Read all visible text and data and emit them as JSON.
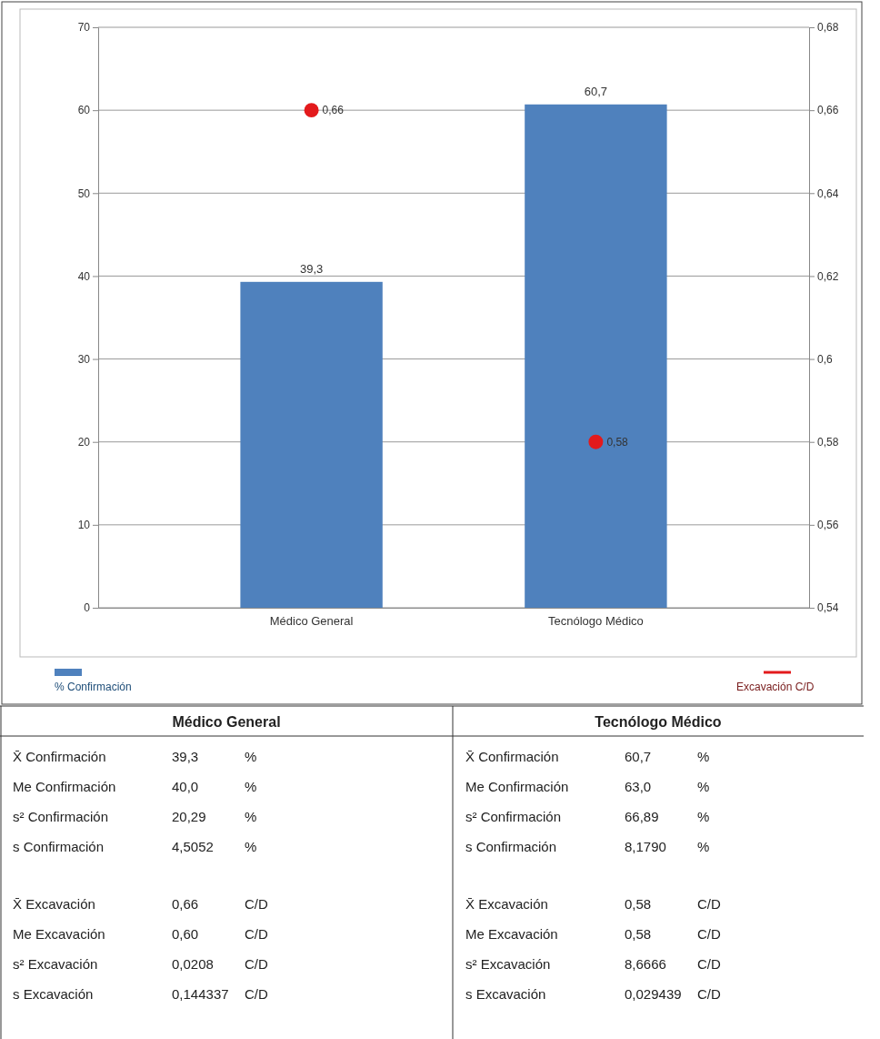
{
  "chart_data": {
    "type": "bar",
    "categories": [
      "Médico General",
      "Tecnólogo Médico"
    ],
    "series": [
      {
        "name": "% Confirmación",
        "color": "#4f81bd",
        "values": [
          39.3,
          60.7
        ],
        "value_labels": [
          "39,3",
          "60,7"
        ]
      },
      {
        "name": "Excavación C/D",
        "type": "scatter",
        "axis": "y2",
        "color": "#e31a1c",
        "values": [
          0.66,
          0.58
        ],
        "value_labels": [
          "0,66",
          "0,58"
        ]
      }
    ],
    "ylim": [
      0,
      70
    ],
    "yticks": [
      0,
      10,
      20,
      30,
      40,
      50,
      60,
      70
    ],
    "y2lim": [
      0.54,
      0.68
    ],
    "y2ticks": [
      {
        "value": 0.54,
        "label": "0,54"
      },
      {
        "value": 0.56,
        "label": "0,56"
      },
      {
        "value": 0.58,
        "label": "0,58"
      },
      {
        "value": 0.6,
        "label": "0,6"
      },
      {
        "value": 0.62,
        "label": "0,62"
      },
      {
        "value": 0.64,
        "label": "0,64"
      },
      {
        "value": 0.66,
        "label": "0,66"
      },
      {
        "value": 0.68,
        "label": "0,68"
      }
    ],
    "grid": "y",
    "legend": "bottom",
    "marker": "circle",
    "annotations": [
      "Médico General",
      "X̄ Confirmación",
      "39,3",
      "%",
      "Me Confirmación",
      "40,0",
      "%",
      "s² Confirmación",
      "20,29",
      "%",
      "s Confirmación",
      "4,5052",
      "%",
      "X̄ Excavación",
      "0,66",
      "C/D",
      "Me Excavación",
      "0,60",
      "C/D",
      "s² Excavación",
      "0,0208",
      "C/D",
      "s Excavación",
      "0,144337",
      "C/D",
      "Tecnólogo Médico",
      "X̄ Confirmación",
      "60,7",
      "%",
      "Me Confirmación",
      "63,0",
      "%",
      "s² Confirmación",
      "66,89",
      "%",
      "s Confirmación",
      "8,1790",
      "%",
      "X̄ Excavación",
      "0,58",
      "C/D",
      "Me Excavación",
      "0,58",
      "C/D",
      "s² Excavación",
      "8,6666",
      "C/D",
      "s Excavación",
      "0,029439",
      "C/D"
    ]
  }
}
